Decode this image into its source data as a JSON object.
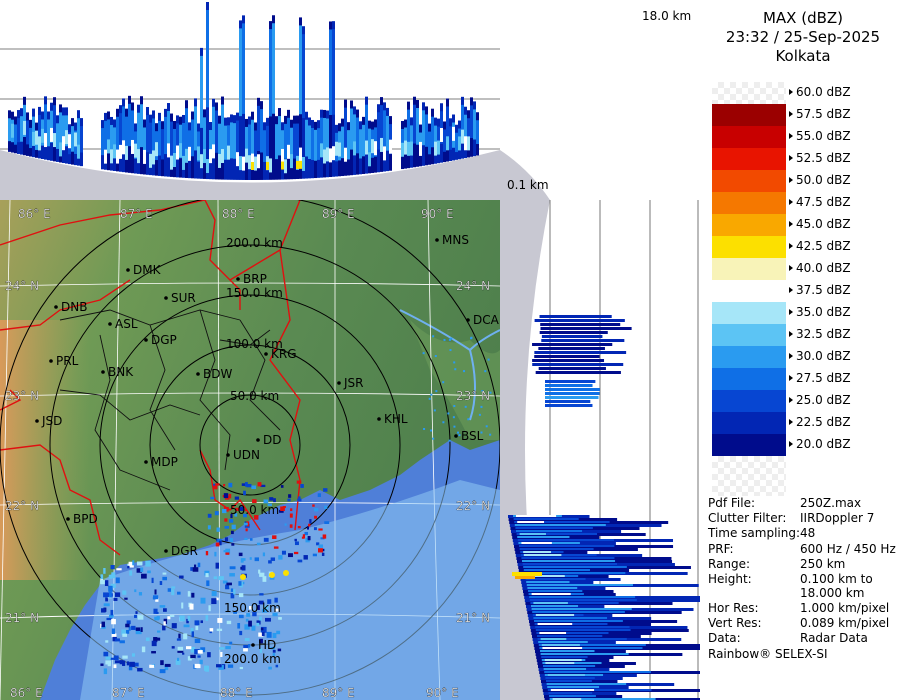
{
  "header": {
    "product": "MAX (dBZ)",
    "datetime": "23:32 / 25-Sep-2025",
    "station": "Kolkata"
  },
  "cross_section": {
    "top_height_label": "18.0 km",
    "bottom_height_label": "0.1 km"
  },
  "legend": [
    {
      "label": "60.0 dBZ",
      "color": ""
    },
    {
      "label": "57.5 dBZ",
      "color": "#9b0000"
    },
    {
      "label": "55.0 dBZ",
      "color": "#c80000"
    },
    {
      "label": "52.5 dBZ",
      "color": "#e81400"
    },
    {
      "label": "50.0 dBZ",
      "color": "#f24a00"
    },
    {
      "label": "47.5 dBZ",
      "color": "#f57800"
    },
    {
      "label": "45.0 dBZ",
      "color": "#f9a800"
    },
    {
      "label": "42.5 dBZ",
      "color": "#fce000"
    },
    {
      "label": "40.0 dBZ",
      "color": "#f8f3b8"
    },
    {
      "label": "37.5 dBZ",
      "color": "#ffffff"
    },
    {
      "label": "35.0 dBZ",
      "color": "#a6e6f8"
    },
    {
      "label": "32.5 dBZ",
      "color": "#5cc4f4"
    },
    {
      "label": "30.0 dBZ",
      "color": "#2a9bf0"
    },
    {
      "label": "27.5 dBZ",
      "color": "#0f6fe6"
    },
    {
      "label": "25.0 dBZ",
      "color": "#0746d2"
    },
    {
      "label": "22.5 dBZ",
      "color": "#0226b4"
    },
    {
      "label": "20.0 dBZ",
      "color": "#000c8c"
    }
  ],
  "info": [
    {
      "key": "Pdf File:",
      "value": "250Z.max"
    },
    {
      "key": "Clutter Filter:",
      "value": "IIRDoppler 7"
    },
    {
      "key": "Time sampling:",
      "value": "48"
    },
    {
      "key": "PRF:",
      "value": "600 Hz / 450 Hz"
    },
    {
      "key": "Range:",
      "value": "250 km"
    },
    {
      "key": "Height:",
      "value": "0.100 km to"
    },
    {
      "key": "",
      "value": "18.000 km"
    },
    {
      "key": "Hor Res:",
      "value": "1.000 km/pixel"
    },
    {
      "key": "Vert Res:",
      "value": "0.089 km/pixel"
    },
    {
      "key": "Data:",
      "value": "Radar Data"
    }
  ],
  "footer": "Rainbow® SELEX-SI",
  "map": {
    "lon_labels": [
      "86° E",
      "87° E",
      "88° E",
      "89° E",
      "90° E"
    ],
    "lat_labels": [
      "24° N",
      "23° N",
      "22° N",
      "21° N"
    ],
    "range_rings": [
      "50.0 km",
      "100.0 km",
      "150.0 km",
      "200.0 km"
    ],
    "stations": [
      "MNS",
      "DMK",
      "BRP",
      "SUR",
      "DNB",
      "ASL",
      "DGP",
      "DCA",
      "PRL",
      "BNK",
      "KRG",
      "BDW",
      "JSR",
      "KHL",
      "JSD",
      "DD",
      "UDN",
      "BSL",
      "MDP",
      "BPD",
      "DGR",
      "HD"
    ],
    "colors": {
      "land": "#5f8f54",
      "sea": "#4f7fd8",
      "border": "#e01010"
    }
  }
}
